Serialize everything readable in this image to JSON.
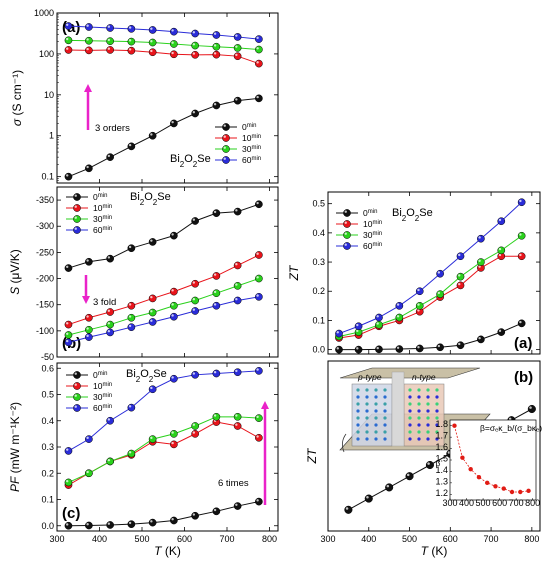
{
  "colors": {
    "0min": "#111111",
    "10min": "#e8141b",
    "30min": "#2ad11c",
    "60min": "#2a2cd8",
    "arrow": "#ea22c9",
    "inset": "#e11b14"
  },
  "legend_labels": {
    "0min": "0",
    "10min": "10",
    "30min": "30",
    "60min": "60",
    "sup": "min"
  },
  "material_name": {
    "base": "Bi",
    "s1": "2",
    "mid": "O",
    "s2": "2",
    "tail": "Se"
  },
  "chart_data": [
    {
      "id": "a",
      "type": "line",
      "panel_label": "(a)",
      "ylabel": "σ (S cm⁻¹)",
      "xlabel": "",
      "yscale": "log",
      "ylim": [
        0.07,
        1000
      ],
      "xlim": [
        300,
        820
      ],
      "yticks": [
        0.1,
        1,
        10,
        100,
        1000
      ],
      "ytick_labels": [
        "0.1",
        "1",
        "10",
        "100",
        "1000"
      ],
      "annotation": "3 orders",
      "legend_position": "center-right",
      "series": [
        {
          "key": "0min",
          "x": [
            327,
            375,
            425,
            475,
            525,
            575,
            625,
            675,
            725,
            775
          ],
          "y": [
            0.1,
            0.16,
            0.3,
            0.55,
            1.0,
            2.0,
            3.5,
            5.5,
            7.2,
            8.2
          ]
        },
        {
          "key": "10min",
          "x": [
            327,
            375,
            425,
            475,
            525,
            575,
            625,
            675,
            725,
            775
          ],
          "y": [
            125,
            122,
            125,
            120,
            110,
            98,
            95,
            96,
            88,
            58
          ]
        },
        {
          "key": "30min",
          "x": [
            327,
            375,
            425,
            475,
            525,
            575,
            625,
            675,
            725,
            775
          ],
          "y": [
            215,
            210,
            205,
            200,
            190,
            175,
            160,
            150,
            140,
            128
          ]
        },
        {
          "key": "60min",
          "x": [
            327,
            375,
            425,
            475,
            525,
            575,
            625,
            675,
            725,
            775
          ],
          "y": [
            480,
            455,
            430,
            410,
            385,
            350,
            315,
            290,
            260,
            230
          ]
        }
      ]
    },
    {
      "id": "b",
      "type": "line",
      "panel_label": "(b)",
      "ylabel": "S (μV/K)",
      "xlabel": "",
      "ylim": [
        -50,
        -375
      ],
      "xlim": [
        300,
        820
      ],
      "yticks": [
        -50,
        -100,
        -150,
        -200,
        -250,
        -300,
        -350
      ],
      "ytick_labels": [
        "-50",
        "-100",
        "-150",
        "-200",
        "-250",
        "-300",
        "-350"
      ],
      "annotation": "3 fold",
      "legend_position": "top-left",
      "series": [
        {
          "key": "0min",
          "x": [
            327,
            375,
            425,
            475,
            525,
            575,
            625,
            675,
            725,
            775
          ],
          "y": [
            -220,
            -232,
            -238,
            -258,
            -270,
            -282,
            -310,
            -325,
            -328,
            -342
          ]
        },
        {
          "key": "10min",
          "x": [
            327,
            375,
            425,
            475,
            525,
            575,
            625,
            675,
            725,
            775
          ],
          "y": [
            -112,
            -125,
            -136,
            -148,
            -162,
            -175,
            -190,
            -205,
            -225,
            -245
          ]
        },
        {
          "key": "30min",
          "x": [
            327,
            375,
            425,
            475,
            525,
            575,
            625,
            675,
            725,
            775
          ],
          "y": [
            -92,
            -102,
            -112,
            -125,
            -135,
            -148,
            -158,
            -172,
            -186,
            -200
          ]
        },
        {
          "key": "60min",
          "x": [
            327,
            375,
            425,
            475,
            525,
            575,
            625,
            675,
            725,
            775
          ],
          "y": [
            -78,
            -88,
            -97,
            -107,
            -117,
            -127,
            -138,
            -148,
            -158,
            -165
          ]
        }
      ]
    },
    {
      "id": "c",
      "type": "line",
      "panel_label": "(c)",
      "ylabel": "PF (mW m⁻¹K⁻²)",
      "xlabel": "T (K)",
      "ylim": [
        -0.02,
        0.62
      ],
      "xlim": [
        300,
        820
      ],
      "yticks": [
        0,
        0.1,
        0.2,
        0.3,
        0.4,
        0.5,
        0.6
      ],
      "ytick_labels": [
        "0.0",
        "0.1",
        "0.2",
        "0.3",
        "0.4",
        "0.5",
        "0.6"
      ],
      "xticks": [
        300,
        400,
        500,
        600,
        700,
        800
      ],
      "xtick_labels": [
        "300",
        "400",
        "500",
        "600",
        "700",
        "800"
      ],
      "annotation": "6 times",
      "legend_position": "top-left",
      "series": [
        {
          "key": "0min",
          "x": [
            327,
            375,
            425,
            475,
            525,
            575,
            625,
            675,
            725,
            775
          ],
          "y": [
            0.0,
            0.001,
            0.003,
            0.006,
            0.012,
            0.02,
            0.038,
            0.055,
            0.075,
            0.092
          ]
        },
        {
          "key": "10min",
          "x": [
            327,
            375,
            425,
            475,
            525,
            575,
            625,
            675,
            725,
            775
          ],
          "y": [
            0.155,
            0.2,
            0.245,
            0.27,
            0.32,
            0.31,
            0.35,
            0.395,
            0.38,
            0.335
          ]
        },
        {
          "key": "30min",
          "x": [
            327,
            375,
            425,
            475,
            525,
            575,
            625,
            675,
            725,
            775
          ],
          "y": [
            0.165,
            0.2,
            0.245,
            0.275,
            0.33,
            0.35,
            0.38,
            0.415,
            0.415,
            0.41
          ]
        },
        {
          "key": "60min",
          "x": [
            327,
            375,
            425,
            475,
            525,
            575,
            625,
            675,
            725,
            775
          ],
          "y": [
            0.285,
            0.33,
            0.4,
            0.45,
            0.52,
            0.56,
            0.575,
            0.58,
            0.585,
            0.59
          ]
        }
      ]
    },
    {
      "id": "d",
      "type": "line",
      "panel_label": "(a)",
      "ylabel": "ZT",
      "xlabel": "",
      "ylim": [
        -0.015,
        0.54
      ],
      "xlim": [
        300,
        820
      ],
      "yticks": [
        0,
        0.1,
        0.2,
        0.3,
        0.4,
        0.5
      ],
      "ytick_labels": [
        "0.0",
        "0.1",
        "0.2",
        "0.3",
        "0.4",
        "0.5"
      ],
      "legend_position": "top-left",
      "series": [
        {
          "key": "0min",
          "x": [
            327,
            375,
            425,
            475,
            525,
            575,
            625,
            675,
            725,
            775
          ],
          "y": [
            0.0,
            0.0,
            0.001,
            0.002,
            0.004,
            0.008,
            0.015,
            0.035,
            0.06,
            0.09
          ]
        },
        {
          "key": "10min",
          "x": [
            327,
            375,
            425,
            475,
            525,
            575,
            625,
            675,
            725,
            775
          ],
          "y": [
            0.04,
            0.05,
            0.08,
            0.1,
            0.13,
            0.18,
            0.22,
            0.28,
            0.32,
            0.32
          ]
        },
        {
          "key": "30min",
          "x": [
            327,
            375,
            425,
            475,
            525,
            575,
            625,
            675,
            725,
            775
          ],
          "y": [
            0.045,
            0.06,
            0.085,
            0.11,
            0.15,
            0.19,
            0.25,
            0.3,
            0.34,
            0.39
          ]
        },
        {
          "key": "60min",
          "x": [
            327,
            375,
            425,
            475,
            525,
            575,
            625,
            675,
            725,
            775
          ],
          "y": [
            0.055,
            0.08,
            0.11,
            0.15,
            0.2,
            0.26,
            0.32,
            0.38,
            0.44,
            0.505
          ]
        }
      ]
    },
    {
      "id": "e",
      "type": "line",
      "panel_label": "(b)",
      "ylabel": "ZT",
      "xlabel": "T (K)",
      "xlim": [
        300,
        820
      ],
      "xticks": [
        300,
        400,
        500,
        600,
        700,
        800
      ],
      "xtick_labels": [
        "300",
        "400",
        "500",
        "600",
        "700",
        "800"
      ],
      "series": [
        {
          "key": "0min",
          "x": [
            350,
            400,
            450,
            500,
            550,
            600,
            650,
            700,
            750,
            800
          ],
          "y": [
            0.08,
            0.16,
            0.24,
            0.32,
            0.4,
            0.48,
            0.56,
            0.64,
            0.72,
            0.8
          ]
        }
      ],
      "schematic_labels": {
        "p": "p-type",
        "n": "n-type"
      },
      "inset": {
        "formula": "β=σₑκ_b/(σ_bκₑ)",
        "ylabel": "β",
        "xlim": [
          300,
          820
        ],
        "ylim": [
          1.15,
          1.85
        ],
        "x": [
          327,
          375,
          425,
          475,
          525,
          575,
          625,
          675,
          725,
          775
        ],
        "y": [
          1.8,
          1.52,
          1.42,
          1.35,
          1.3,
          1.27,
          1.25,
          1.22,
          1.22,
          1.23
        ]
      }
    }
  ]
}
